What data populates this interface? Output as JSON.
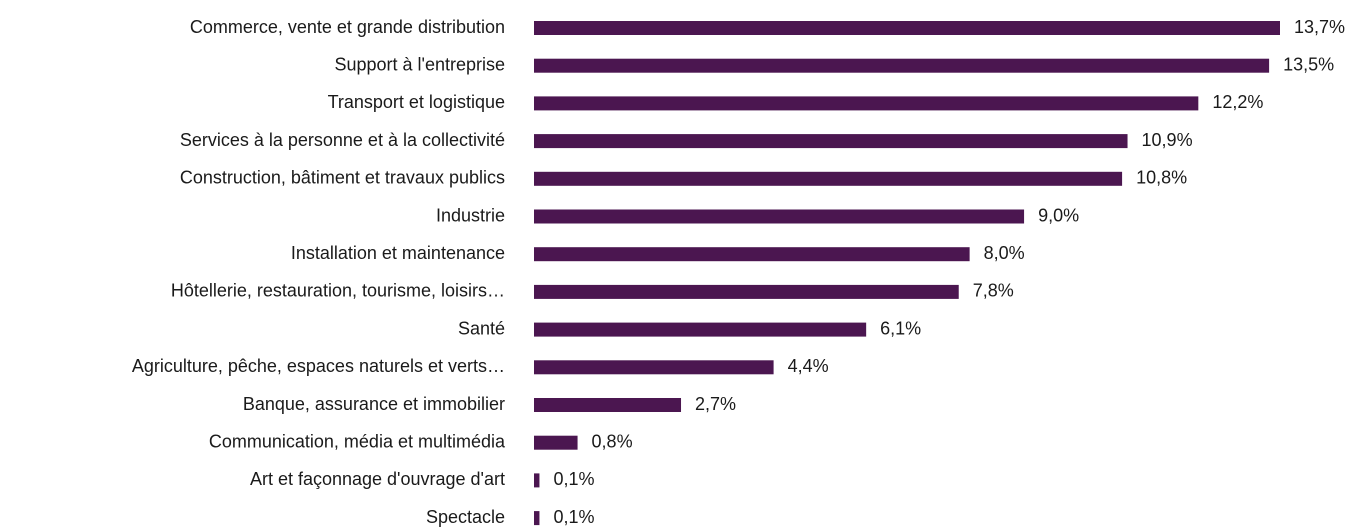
{
  "chart_data": {
    "type": "barh",
    "color": "#4b1650",
    "categories": [
      "Commerce, vente et grande distribution",
      "Support à l'entreprise",
      "Transport et logistique",
      "Services à la personne et à la collectivité",
      "Construction, bâtiment et travaux publics",
      "Industrie",
      "Installation et maintenance",
      "Hôtellerie, restauration, tourisme, loisirs…",
      "Santé",
      "Agriculture, pêche, espaces naturels et verts…",
      "Banque, assurance et immobilier",
      "Communication, média et multimédia",
      "Art et façonnage d'ouvrage d'art",
      "Spectacle"
    ],
    "values": [
      13.7,
      13.5,
      12.2,
      10.9,
      10.8,
      9.0,
      8.0,
      7.8,
      6.1,
      4.4,
      2.7,
      0.8,
      0.1,
      0.1
    ],
    "value_labels": [
      "13,7%",
      "13,5%",
      "12,2%",
      "10,9%",
      "10,8%",
      "9,0%",
      "8,0%",
      "7,8%",
      "6,1%",
      "4,4%",
      "2,7%",
      "0,8%",
      "0,1%",
      "0,1%"
    ]
  }
}
